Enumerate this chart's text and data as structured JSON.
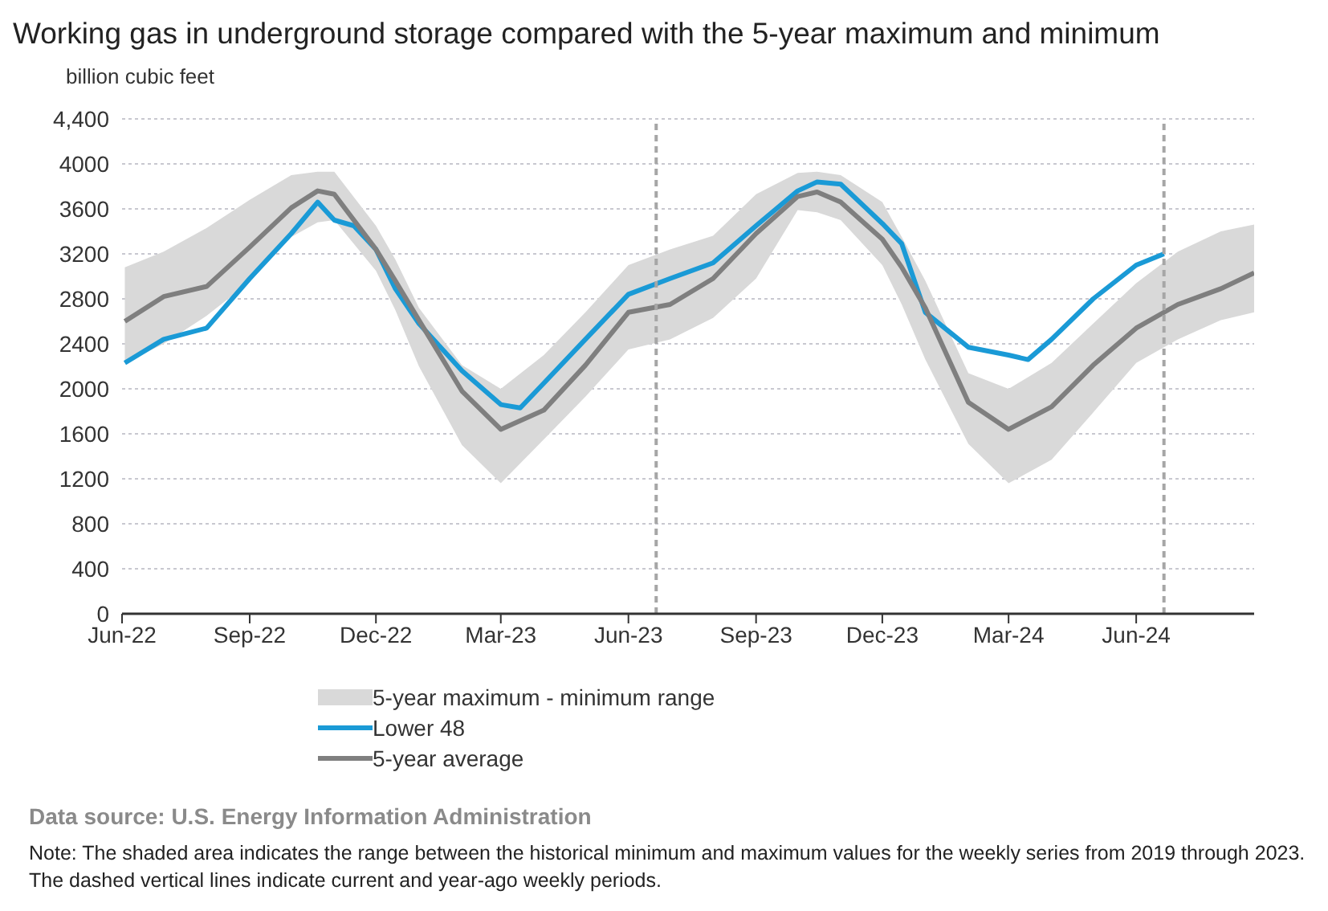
{
  "chart_data": {
    "type": "line",
    "title": "Working gas in underground storage compared with the 5-year maximum and minimum",
    "ylabel": "billion cubic feet",
    "xlim": [
      "2022-06-01",
      "2024-08-25"
    ],
    "xticks": [
      {
        "value": "2022-06-01",
        "label": "Jun-22"
      },
      {
        "value": "2022-09-01",
        "label": "Sep-22"
      },
      {
        "value": "2022-12-01",
        "label": "Dec-22"
      },
      {
        "value": "2023-03-01",
        "label": "Mar-23"
      },
      {
        "value": "2023-06-01",
        "label": "Jun-23"
      },
      {
        "value": "2023-09-01",
        "label": "Sep-23"
      },
      {
        "value": "2023-12-01",
        "label": "Dec-23"
      },
      {
        "value": "2024-03-01",
        "label": "Mar-24"
      },
      {
        "value": "2024-06-01",
        "label": "Jun-24"
      }
    ],
    "ylim": [
      0,
      4400
    ],
    "yticks": [
      0,
      400,
      800,
      1200,
      1600,
      2000,
      2400,
      2800,
      3200,
      3600,
      4000,
      {
        "value": 4400,
        "label": "4,400"
      }
    ],
    "grid": "y",
    "legend": "bottom",
    "marker": "none",
    "ref_lines": [
      {
        "axis": "x",
        "value": "2023-06-21",
        "color": "#a6a6a6",
        "line_style": "dashed"
      },
      {
        "axis": "x",
        "value": "2024-06-21",
        "color": "#a6a6a6",
        "line_style": "dashed"
      }
    ],
    "series": [
      {
        "name": "Lower 48",
        "color": "#1a9ad6",
        "x": [
          "2022-06-03",
          "2022-07-01",
          "2022-08-01",
          "2022-09-01",
          "2022-10-01",
          "2022-10-20",
          "2022-11-01",
          "2022-11-15",
          "2022-12-01",
          "2022-12-15",
          "2023-01-01",
          "2023-02-01",
          "2023-03-01",
          "2023-03-15",
          "2023-04-01",
          "2023-05-01",
          "2023-06-01",
          "2023-07-01",
          "2023-08-01",
          "2023-09-01",
          "2023-10-01",
          "2023-10-15",
          "2023-11-01",
          "2023-12-01",
          "2023-12-15",
          "2024-01-01",
          "2024-02-01",
          "2024-03-01",
          "2024-03-15",
          "2024-04-01",
          "2024-05-01",
          "2024-06-01",
          "2024-06-21"
        ],
        "values": [
          2230,
          2440,
          2540,
          2980,
          3380,
          3660,
          3500,
          3450,
          3240,
          2890,
          2580,
          2160,
          1860,
          1830,
          2050,
          2440,
          2840,
          2980,
          3120,
          3450,
          3760,
          3840,
          3820,
          3470,
          3290,
          2680,
          2370,
          2300,
          2260,
          2440,
          2800,
          3100,
          3200
        ]
      },
      {
        "name": "5-year average",
        "color": "#7f7f7f",
        "x": [
          "2022-06-03",
          "2022-07-01",
          "2022-08-01",
          "2022-09-01",
          "2022-10-01",
          "2022-10-20",
          "2022-11-01",
          "2022-12-01",
          "2022-12-15",
          "2023-01-01",
          "2023-02-01",
          "2023-03-01",
          "2023-04-01",
          "2023-05-01",
          "2023-06-01",
          "2023-07-01",
          "2023-08-01",
          "2023-09-01",
          "2023-10-01",
          "2023-10-15",
          "2023-11-01",
          "2023-12-01",
          "2023-12-15",
          "2024-01-01",
          "2024-02-01",
          "2024-03-01",
          "2024-04-01",
          "2024-05-01",
          "2024-06-01",
          "2024-07-01",
          "2024-08-01",
          "2024-08-25"
        ],
        "values": [
          2600,
          2820,
          2910,
          3260,
          3610,
          3760,
          3730,
          3240,
          2960,
          2610,
          1980,
          1640,
          1810,
          2210,
          2680,
          2750,
          2980,
          3380,
          3710,
          3750,
          3660,
          3330,
          3080,
          2720,
          1880,
          1640,
          1840,
          2210,
          2540,
          2750,
          2890,
          3030
        ],
        "upper": [
          3080,
          3220,
          3430,
          3680,
          3900,
          3930,
          3930,
          3450,
          3150,
          2720,
          2210,
          2000,
          2300,
          2680,
          3100,
          3240,
          3360,
          3730,
          3920,
          3930,
          3900,
          3660,
          3350,
          2960,
          2140,
          2000,
          2230,
          2580,
          2940,
          3220,
          3400,
          3460
        ],
        "lower": [
          2230,
          2400,
          2650,
          2950,
          3350,
          3480,
          3500,
          3050,
          2700,
          2200,
          1500,
          1160,
          1550,
          1930,
          2350,
          2440,
          2630,
          2980,
          3590,
          3570,
          3500,
          3100,
          2750,
          2260,
          1510,
          1160,
          1370,
          1790,
          2230,
          2440,
          2610,
          2680
        ]
      }
    ],
    "annotations": [
      "5-year maximum - minimum range",
      "Data source:  U.S. Energy Information Administration",
      "Note: The shaded area indicates the range between the historical minimum and maximum values for the weekly series from 2019 through 2023. The dashed vertical lines indicate current and year-ago weekly periods."
    ]
  }
}
